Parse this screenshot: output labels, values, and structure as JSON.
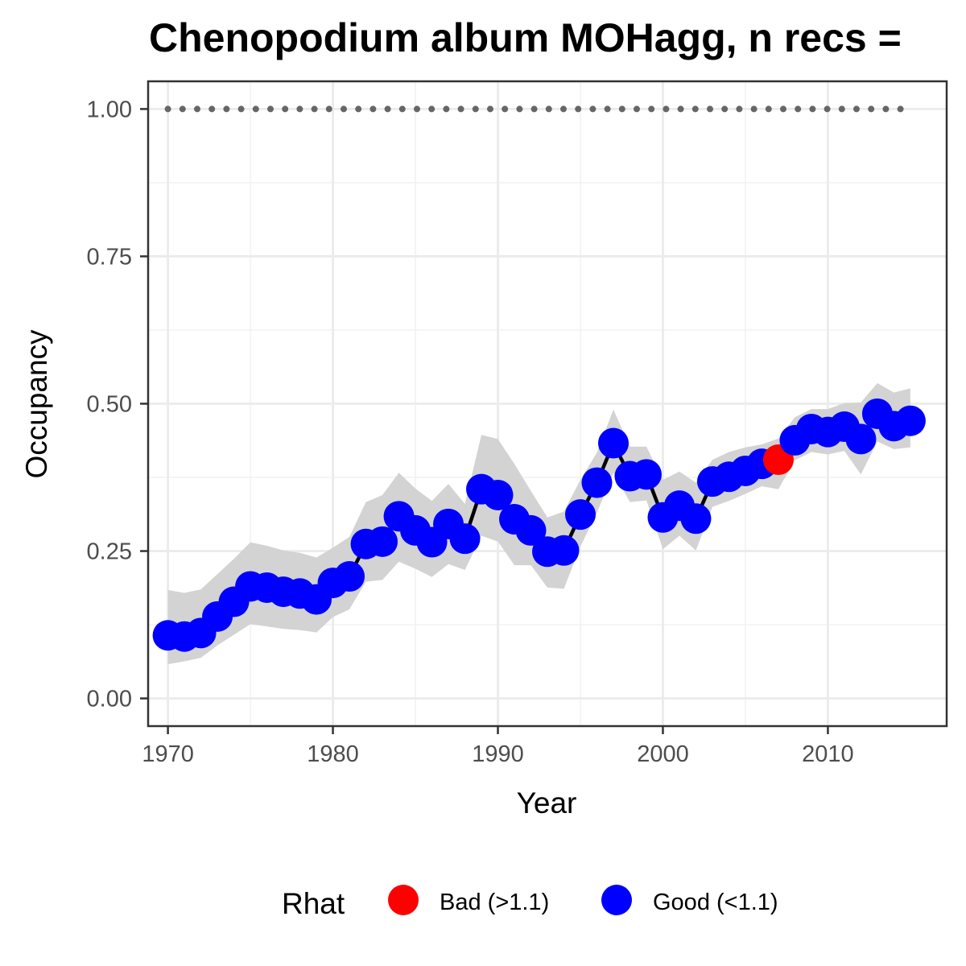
{
  "chart_data": {
    "type": "line",
    "title": "Chenopodium album MOHagg, n recs = ",
    "xlabel": "Year",
    "ylabel": "Occupancy",
    "xlim": [
      1968.8,
      2017.2
    ],
    "ylim": [
      -0.047,
      1.047
    ],
    "x_ticks": [
      1970,
      1980,
      1990,
      2000,
      2010
    ],
    "x_tick_labels": [
      "1970",
      "1980",
      "1990",
      "2000",
      "2010"
    ],
    "y_ticks": [
      0,
      0.25,
      0.5,
      0.75,
      1.0
    ],
    "y_tick_labels": [
      "0.00",
      "0.25",
      "0.50",
      "0.75",
      "1.00"
    ],
    "grid": true,
    "reference_line": {
      "y": 1.0,
      "style": "dotted",
      "color": "#666666"
    },
    "series": [
      {
        "years": [
          1970,
          1971,
          1972,
          1973,
          1974,
          1975,
          1976,
          1977,
          1978,
          1979,
          1980,
          1981,
          1982,
          1983,
          1984,
          1985,
          1986,
          1987,
          1988,
          1989,
          1990,
          1991,
          1992,
          1993,
          1994,
          1995,
          1996,
          1997,
          1998,
          1999,
          2000,
          2001,
          2002,
          2003,
          2004,
          2005,
          2006,
          2007,
          2008,
          2009,
          2010,
          2011,
          2012,
          2013,
          2014,
          2015
        ],
        "values": [
          0.107,
          0.105,
          0.111,
          0.139,
          0.164,
          0.19,
          0.188,
          0.181,
          0.178,
          0.168,
          0.196,
          0.207,
          0.262,
          0.266,
          0.309,
          0.285,
          0.265,
          0.296,
          0.271,
          0.355,
          0.345,
          0.304,
          0.285,
          0.249,
          0.251,
          0.312,
          0.366,
          0.433,
          0.377,
          0.38,
          0.307,
          0.327,
          0.305,
          0.368,
          0.376,
          0.386,
          0.398,
          0.405,
          0.438,
          0.457,
          0.452,
          0.461,
          0.44,
          0.483,
          0.462,
          0.471
        ],
        "lower": [
          0.058,
          0.063,
          0.069,
          0.09,
          0.108,
          0.126,
          0.122,
          0.118,
          0.116,
          0.112,
          0.138,
          0.151,
          0.198,
          0.201,
          0.232,
          0.22,
          0.206,
          0.228,
          0.218,
          0.276,
          0.266,
          0.226,
          0.226,
          0.188,
          0.186,
          0.258,
          0.315,
          0.383,
          0.333,
          0.336,
          0.253,
          0.276,
          0.251,
          0.325,
          0.335,
          0.347,
          0.36,
          0.355,
          0.404,
          0.418,
          0.414,
          0.42,
          0.38,
          0.436,
          0.423,
          0.426
        ],
        "upper": [
          0.184,
          0.179,
          0.185,
          0.211,
          0.237,
          0.265,
          0.259,
          0.251,
          0.247,
          0.239,
          0.256,
          0.274,
          0.333,
          0.345,
          0.383,
          0.356,
          0.335,
          0.364,
          0.33,
          0.447,
          0.44,
          0.398,
          0.352,
          0.307,
          0.317,
          0.371,
          0.417,
          0.49,
          0.427,
          0.427,
          0.371,
          0.385,
          0.366,
          0.405,
          0.418,
          0.426,
          0.431,
          0.441,
          0.477,
          0.491,
          0.491,
          0.501,
          0.502,
          0.535,
          0.519,
          0.526
        ],
        "rhat_bad": [
          2007
        ]
      }
    ],
    "line_color": "#000000",
    "ribbon_color": "#d3d3d3",
    "legend": {
      "title": "Rhat",
      "position": "bottom",
      "entries": [
        {
          "label": "Bad (>1.1)",
          "color": "#ff0000"
        },
        {
          "label": "Good (<1.1)",
          "color": "#0000ff"
        }
      ]
    }
  }
}
